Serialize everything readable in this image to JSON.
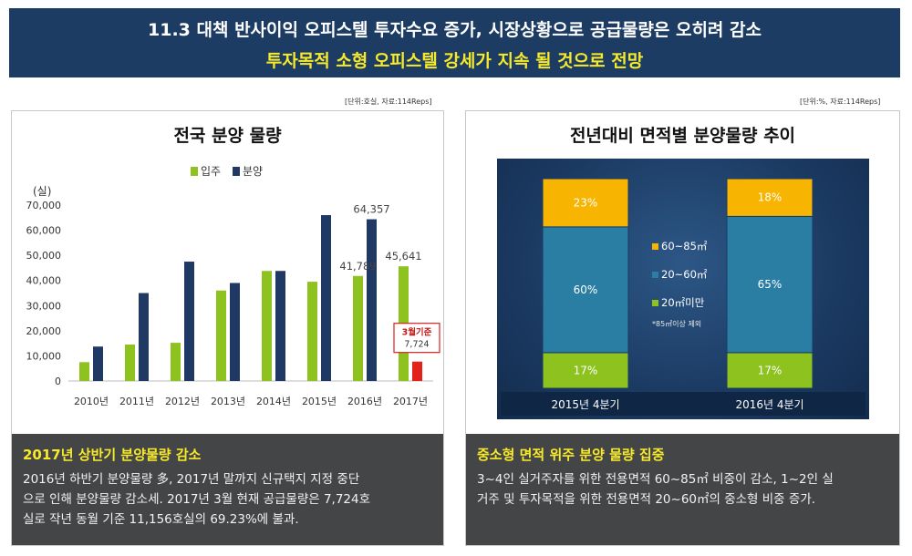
{
  "header": {
    "line1": "11.3 대책 반사이익 오피스텔 투자수요 증가, 시장상황으로 공급물량은 오히려 감소",
    "line2": "투자목적 소형 오피스텔 강세가 지속 될 것으로 전망"
  },
  "left": {
    "unit_note": "[단위:호실, 자료:114Reps]",
    "title": "전국 분양 물량",
    "desc_title": "2017년 상반기 분양물량 감소",
    "desc_lines": [
      "2016년 하반기 분양물량 多, 2017년 말까지 신규택지 지정 중단",
      "으로 인해 분양물량 감소세. 2017년 3월 현재 공급물량은 7,724호",
      "실로 작년 동월 기준 11,156호실의 69.23%에 불과."
    ]
  },
  "right": {
    "unit_note": "[단위:%, 자료:114Reps]",
    "title": "전년대비 면적별 분양물량 추이",
    "desc_title": "중소형 면적 위주 분양 물량 집중",
    "desc_lines": [
      "3~4인 실거주자를 위한 전용면적 60~85㎡ 비중이 감소, 1~2인 실",
      "거주 및 투자목적을 위한 전용면적 20~60㎡의 중소형 비중 증가."
    ]
  },
  "chart_data": [
    {
      "type": "bar",
      "title": "전국 분양 물량",
      "ylabel": "(실)",
      "ylim": [
        0,
        70000
      ],
      "yticks": [
        0,
        10000,
        20000,
        30000,
        40000,
        50000,
        60000,
        70000
      ],
      "ytick_labels": [
        "0",
        "10,000",
        "20,000",
        "30,000",
        "40,000",
        "50,000",
        "60,000",
        "70,000"
      ],
      "categories": [
        "2010년",
        "2011년",
        "2012년",
        "2013년",
        "2014년",
        "2015년",
        "2016년",
        "2017년"
      ],
      "series": [
        {
          "name": "입주",
          "color": "#8dc21f",
          "values": [
            7500,
            14500,
            15200,
            36000,
            43800,
            39500,
            41789,
            45641
          ]
        },
        {
          "name": "분양",
          "color": "#1f3864",
          "values": [
            13700,
            35000,
            47500,
            39000,
            43800,
            66000,
            64357,
            7724
          ]
        }
      ],
      "data_labels": [
        {
          "text": "41,789",
          "series": 0,
          "index": 6
        },
        {
          "text": "64,357",
          "series": 1,
          "index": 6
        },
        {
          "text": "45,641",
          "series": 0,
          "index": 7
        }
      ],
      "highlight": {
        "index": 7,
        "series": 1,
        "color": "#e3231b",
        "box_line1": "3월기준",
        "box_line2": "7,724"
      },
      "legend": "top-center",
      "grid": false
    },
    {
      "type": "bar",
      "stacked": true,
      "title": "전년대비 면적별 분양물량 추이",
      "categories": [
        "2015년 4분기",
        "2016년 4분기"
      ],
      "series": [
        {
          "name": "20㎡미만",
          "color": "#8dc21f",
          "values": [
            17,
            17
          ],
          "labels": [
            "17%",
            "17%"
          ]
        },
        {
          "name": "20~60㎡",
          "color": "#2b7ea3",
          "values": [
            60,
            65
          ],
          "labels": [
            "60%",
            "65%"
          ]
        },
        {
          "name": "60~85㎡",
          "color": "#f7b400",
          "values": [
            23,
            18
          ],
          "labels": [
            "23%",
            "18%"
          ]
        }
      ],
      "legend_note": "*85㎡이상 제외",
      "legend": "center"
    }
  ]
}
